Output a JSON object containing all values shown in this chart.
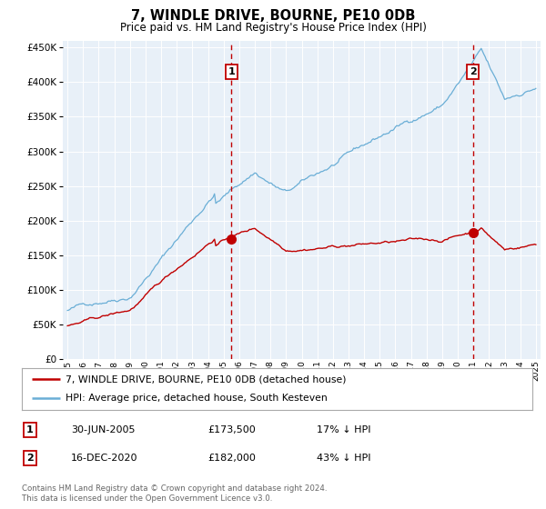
{
  "title": "7, WINDLE DRIVE, BOURNE, PE10 0DB",
  "subtitle": "Price paid vs. HM Land Registry's House Price Index (HPI)",
  "footer": "Contains HM Land Registry data © Crown copyright and database right 2024.\nThis data is licensed under the Open Government Licence v3.0.",
  "legend_line1": "7, WINDLE DRIVE, BOURNE, PE10 0DB (detached house)",
  "legend_line2": "HPI: Average price, detached house, South Kesteven",
  "annotation1_date": "30-JUN-2005",
  "annotation1_price": "£173,500",
  "annotation1_hpi": "17% ↓ HPI",
  "annotation2_date": "16-DEC-2020",
  "annotation2_price": "£182,000",
  "annotation2_hpi": "43% ↓ HPI",
  "sale1_x": 2005.5,
  "sale1_y": 173500,
  "sale2_x": 2020.96,
  "sale2_y": 182000,
  "hpi_line_color": "#6aaed6",
  "sale_line_color": "#c00000",
  "plot_bg_color": "#e8f0f8",
  "vline_color": "#c00000",
  "ylim": [
    0,
    460000
  ],
  "xlim_start": 1994.7,
  "xlim_end": 2025.3,
  "yticks": [
    0,
    50000,
    100000,
    150000,
    200000,
    250000,
    300000,
    350000,
    400000,
    450000
  ]
}
